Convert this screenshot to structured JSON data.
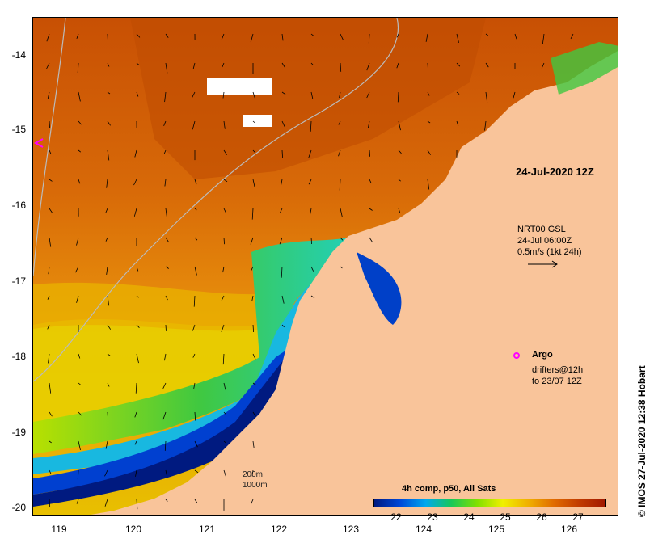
{
  "map": {
    "date_label": "24-Jul-2020 12Z",
    "nrt": {
      "line1": "NRT00 GSL",
      "line2": "24-Jul 06:00Z",
      "line3": "0.5m/s (1kt 24h)"
    },
    "argo_label": "Argo",
    "drifters": {
      "line1": "drifters@12h",
      "line2": "to 23/07 12Z"
    },
    "credit": "© IMOS 27-Jul-2020 12:38 Hobart",
    "scale": {
      "depth1": "200m",
      "depth2": "1000m"
    },
    "colorbar": {
      "title": "4h comp, p50, All Sats",
      "ticks": [
        "22",
        "23",
        "24",
        "25",
        "26",
        "27"
      ],
      "range": [
        21.5,
        27.7
      ],
      "colors": [
        "#001a80",
        "#0048d8",
        "#00a8ee",
        "#18c858",
        "#80e000",
        "#f0f000",
        "#f0b000",
        "#e06a00",
        "#c03a00",
        "#a01800"
      ]
    },
    "lat_labels": [
      "-14",
      "-15",
      "-16",
      "-17",
      "-18",
      "-19",
      "-20"
    ],
    "lon_labels": [
      "119",
      "120",
      "121",
      "122",
      "123",
      "124",
      "125",
      "126"
    ],
    "lat_range": [
      -20.1,
      -13.5
    ],
    "lon_range": [
      118.7,
      126.7
    ],
    "colors": {
      "land": "#f9c49a",
      "warm": "#d45a04",
      "mid": "#e88a18",
      "yellow": "#e8d800",
      "green": "#40c840",
      "cyan": "#20c8d8",
      "blue": "#0050e0",
      "navy": "#001878",
      "argo": "#ff00ff"
    }
  }
}
